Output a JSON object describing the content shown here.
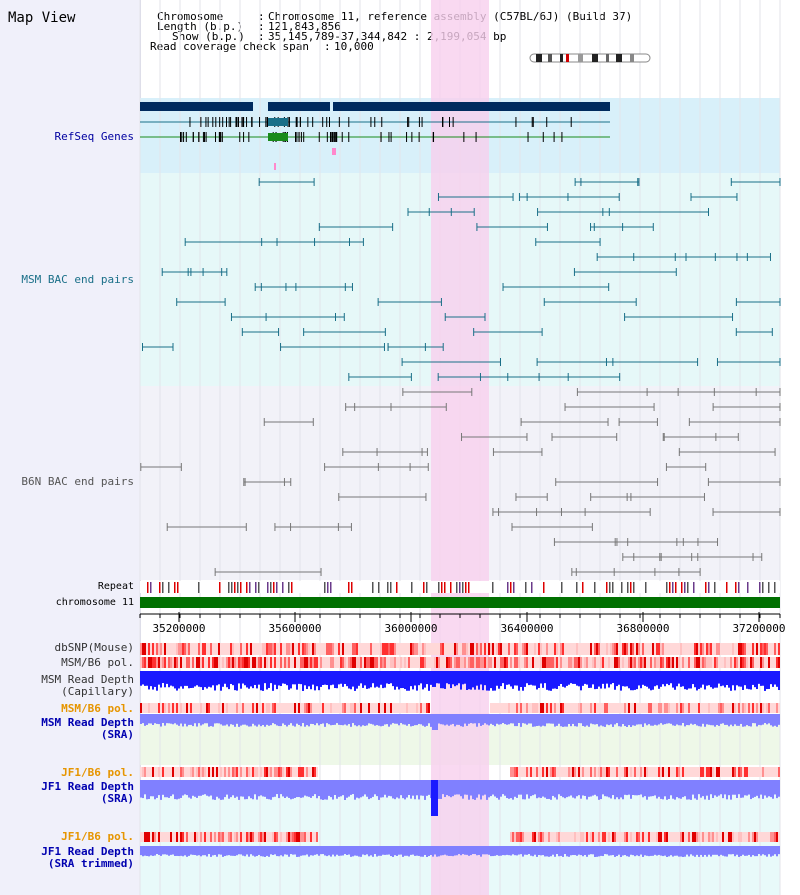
{
  "map_view_title": "Map View",
  "info": {
    "chromosome_key": "Chromosome",
    "chromosome_value": "Chromosome 11, reference assembly (C57BL/6J) (Build 37)",
    "length_key": "Length (b.p.)",
    "length_value": "121,843,856",
    "show_key": "Show (b.p.)",
    "show_value": "35,145,789-37,344,842 : 2,199,054 bp",
    "coverage_key": "Read coverage check span",
    "coverage_value": "10,000"
  },
  "tracks": {
    "refseq": "RefSeq Genes",
    "msm_bac": "MSM BAC end pairs",
    "b6n_bac": "B6N BAC end pairs",
    "repeat": "Repeat",
    "chromosome": "chromosome 11",
    "dbsnp": "dbSNP(Mouse)",
    "msm_b6_pol": "MSM/B6 pol.",
    "msm_depth_cap_1": "MSM Read Depth",
    "msm_depth_cap_2": "(Capillary)",
    "msm_b6_pol_2": "MSM/B6 pol.",
    "msm_depth_sra_1": "MSM Read Depth",
    "msm_depth_sra_2": "(SRA)",
    "jf1_b6_pol": "JF1/B6 pol.",
    "jf1_depth_sra_1": "JF1 Read Depth",
    "jf1_depth_sra_2": "(SRA)",
    "jf1_b6_pol_2": "JF1/B6 pol.",
    "jf1_depth_trim_1": "JF1 Read Depth",
    "jf1_depth_trim_2": "(SRA trimmed)"
  },
  "axis_ticks": [
    "35200000",
    "35600000",
    "36000000",
    "36400000",
    "36800000",
    "37200000"
  ],
  "colors": {
    "refseq_bg": "#d8f0fa",
    "msm_bg": "#e6f8f8",
    "b6n_bg": "#f2f2f8",
    "highlight": "#f8d0ee",
    "gene_dark": "#002b5e",
    "msm_line": "#1a6f88",
    "b6n_line": "#777777",
    "chromosome_bar": "#007000",
    "depth_blue": "#1a1aff",
    "depth_light": "#8080ff"
  }
}
